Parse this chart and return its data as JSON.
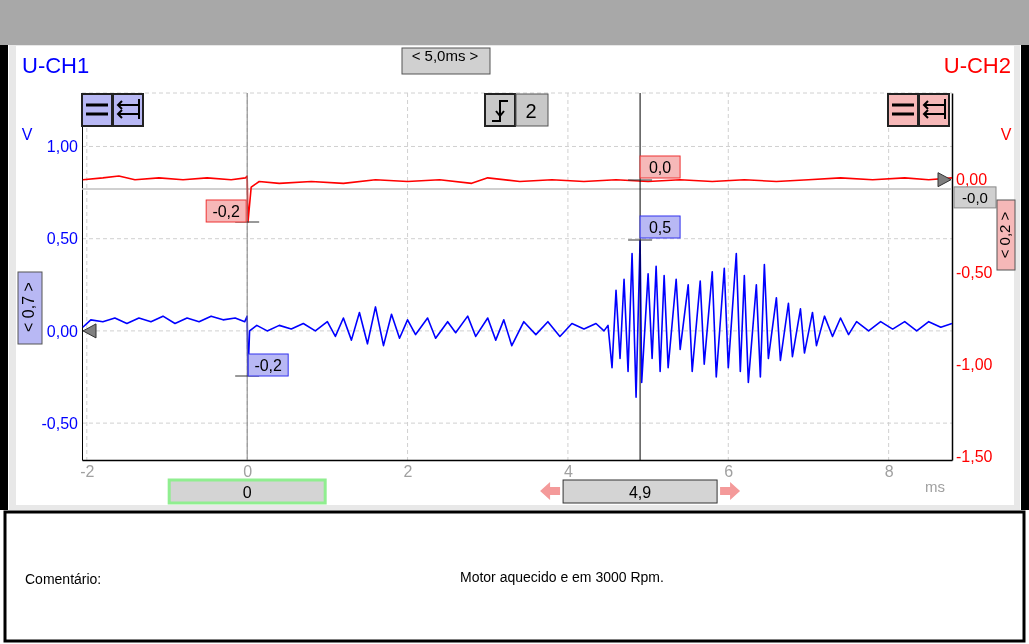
{
  "chart_data": {
    "type": "line",
    "xlabel": "ms",
    "ylabel": "V",
    "y2label": "V",
    "xlim": [
      -2.06,
      8.79
    ],
    "xticks": [
      -2,
      0,
      2,
      4,
      6,
      8
    ],
    "ylim": [
      -0.7,
      1.29
    ],
    "yticks": [
      {
        "value": -0.5,
        "label": "-0,50"
      },
      {
        "value": 0,
        "label": "0,00"
      },
      {
        "value": 0.5,
        "label": "0,50"
      },
      {
        "value": 1,
        "label": "1,00"
      }
    ],
    "y2lim": [
      -1.52,
      0.47
    ],
    "y2ticks": [
      {
        "value": -1.5,
        "label": "-1,50"
      },
      {
        "value": -1,
        "label": "-1,00"
      },
      {
        "value": -0.5,
        "label": "-0,50"
      },
      {
        "value": 0,
        "label": "0,00"
      }
    ],
    "grid": true,
    "legend": false,
    "series": [
      {
        "name": "U-CH1",
        "color": "#0000ff",
        "x": [
          -2.05,
          -1.95,
          -1.8,
          -1.65,
          -1.5,
          -1.35,
          -1.2,
          -1.05,
          -0.9,
          -0.75,
          -0.6,
          -0.45,
          -0.3,
          -0.15,
          -0.03,
          0,
          0.01,
          0.03,
          0.12,
          0.25,
          0.4,
          0.55,
          0.7,
          0.85,
          1.0,
          1.1,
          1.2,
          1.3,
          1.4,
          1.5,
          1.6,
          1.7,
          1.8,
          1.9,
          2.0,
          2.1,
          2.25,
          2.35,
          2.5,
          2.6,
          2.75,
          2.85,
          3.0,
          3.1,
          3.2,
          3.3,
          3.45,
          3.6,
          3.75,
          3.9,
          4.05,
          4.2,
          4.35,
          4.45,
          4.5,
          4.55,
          4.6,
          4.65,
          4.7,
          4.75,
          4.8,
          4.85,
          4.9,
          4.92,
          5.0,
          5.05,
          5.1,
          5.15,
          5.2,
          5.25,
          5.35,
          5.4,
          5.5,
          5.55,
          5.65,
          5.7,
          5.8,
          5.85,
          5.95,
          6.0,
          6.1,
          6.15,
          6.2,
          6.25,
          6.35,
          6.4,
          6.45,
          6.5,
          6.6,
          6.65,
          6.75,
          6.8,
          6.9,
          6.95,
          7.05,
          7.1,
          7.2,
          7.3,
          7.4,
          7.5,
          7.6,
          7.75,
          7.9,
          8.05,
          8.2,
          8.35,
          8.5,
          8.65,
          8.79
        ],
        "values": [
          0.02,
          0.06,
          0.05,
          0.07,
          0.04,
          0.07,
          0.05,
          0.08,
          0.04,
          0.07,
          0.05,
          0.08,
          0.06,
          0.07,
          0.05,
          0.08,
          -0.24,
          0.0,
          0.03,
          0.0,
          0.03,
          0.01,
          0.04,
          0.0,
          0.05,
          -0.03,
          0.07,
          -0.05,
          0.1,
          -0.07,
          0.13,
          -0.08,
          0.09,
          -0.04,
          0.06,
          -0.02,
          0.07,
          -0.04,
          0.05,
          -0.01,
          0.08,
          -0.03,
          0.07,
          -0.05,
          0.06,
          -0.08,
          0.05,
          -0.02,
          0.05,
          -0.03,
          0.04,
          0.01,
          0.04,
          0.0,
          0.03,
          -0.2,
          0.22,
          -0.15,
          0.28,
          -0.22,
          0.42,
          -0.36,
          0.49,
          -0.28,
          0.31,
          -0.15,
          0.35,
          -0.22,
          0.3,
          -0.2,
          0.28,
          -0.1,
          0.25,
          -0.22,
          0.27,
          -0.18,
          0.32,
          -0.25,
          0.34,
          -0.2,
          0.42,
          -0.22,
          0.3,
          -0.28,
          0.25,
          -0.25,
          0.36,
          -0.15,
          0.18,
          -0.16,
          0.15,
          -0.14,
          0.12,
          -0.12,
          0.1,
          -0.08,
          0.08,
          -0.03,
          0.07,
          -0.02,
          0.05,
          0.0,
          0.05,
          0.01,
          0.05,
          0.0,
          0.05,
          0.02,
          0.04
        ]
      },
      {
        "name": "U-CH2",
        "color": "#ff0000",
        "axis": "y2",
        "x": [
          -2.05,
          -1.8,
          -1.6,
          -1.4,
          -1.1,
          -0.8,
          -0.5,
          -0.2,
          -0.02,
          0,
          0.01,
          0.05,
          0.15,
          0.4,
          0.8,
          1.2,
          1.6,
          2.0,
          2.4,
          2.8,
          3.0,
          3.4,
          3.8,
          4.2,
          4.6,
          5.0,
          5.4,
          5.8,
          6.2,
          6.6,
          7.0,
          7.4,
          7.8,
          8.2,
          8.5,
          8.79
        ],
        "values": [
          0.0,
          0.01,
          0.02,
          0.0,
          0.01,
          0.0,
          0.01,
          0.0,
          0.01,
          0.02,
          -0.23,
          -0.04,
          -0.01,
          -0.02,
          -0.01,
          -0.02,
          0.0,
          -0.01,
          0.0,
          -0.02,
          0.01,
          -0.01,
          0.0,
          -0.01,
          0.0,
          -0.01,
          0.0,
          -0.01,
          0.0,
          -0.01,
          0.0,
          0.01,
          0.0,
          0.01,
          0.0,
          0.01
        ]
      }
    ],
    "ref_lines": [
      {
        "axis": "x",
        "value": 0,
        "label": "0",
        "color": "#808080"
      },
      {
        "axis": "x",
        "value": 4.9,
        "label": "4,9",
        "color": "#000000"
      },
      {
        "axis": "y2",
        "value": -0.05,
        "label": "-0,0",
        "color": "#c0c0c0"
      }
    ],
    "annotations": [
      "< 5,0ms >",
      "< 0,7 >",
      "< 0,2 >",
      "2",
      "Comentário:",
      "Motor aquecido e em 3000 Rpm.",
      "-0,2",
      "0,0",
      "-0,2",
      "0,5"
    ]
  }
}
